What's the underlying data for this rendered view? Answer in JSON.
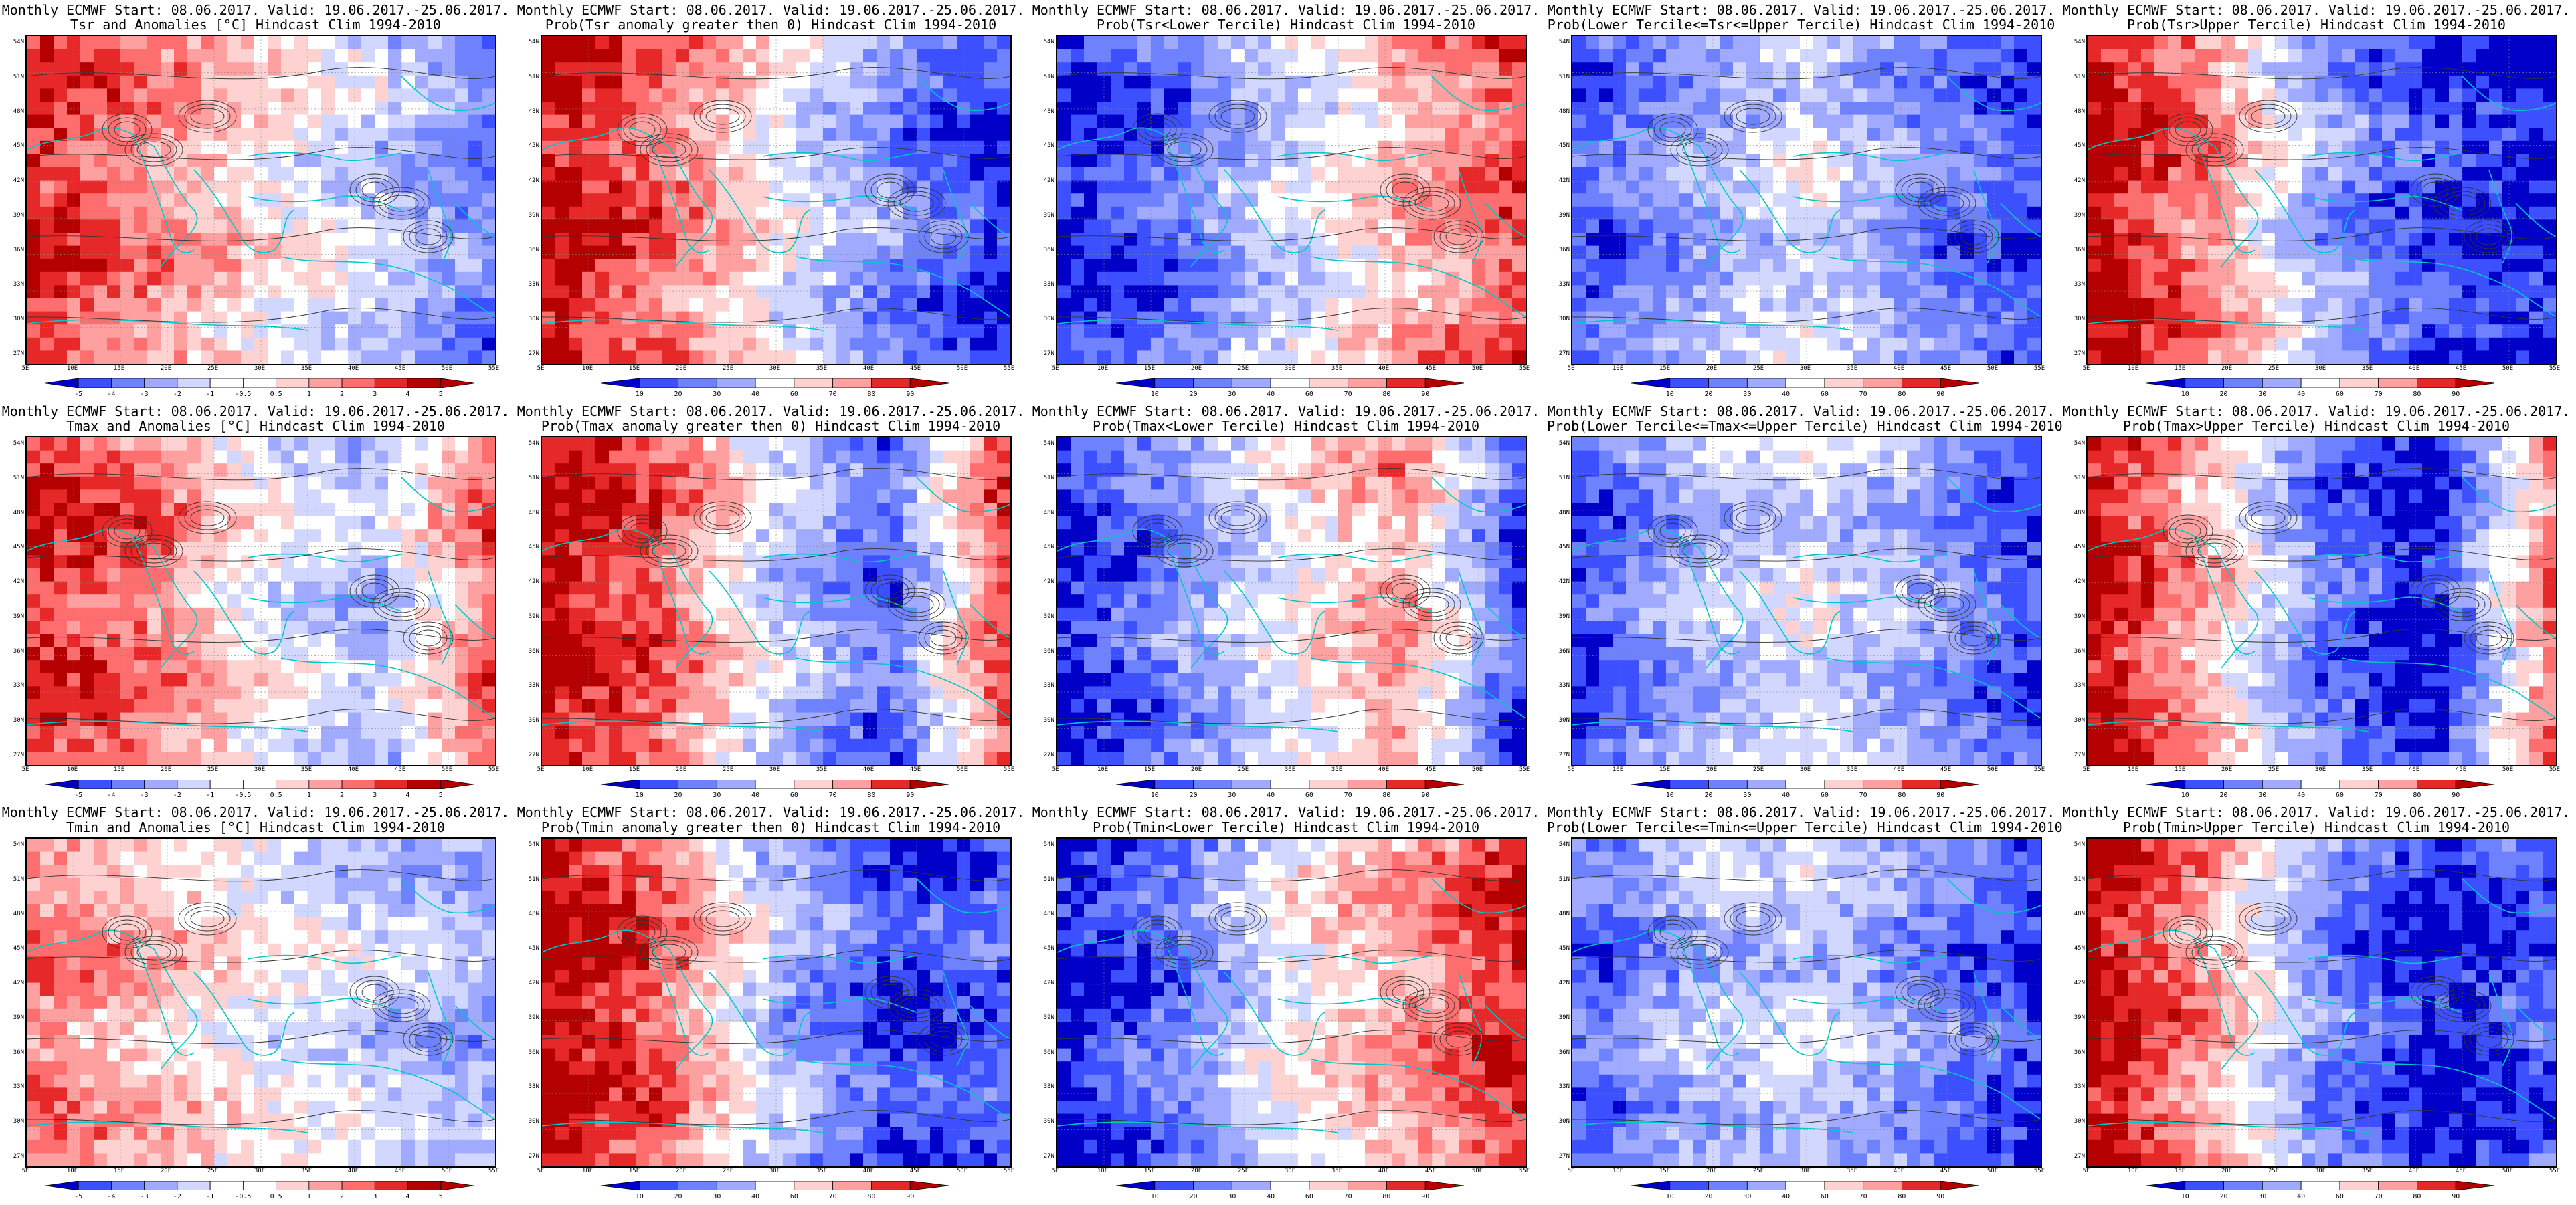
{
  "figure": {
    "colors": {
      "dark_blue": "#0000c8",
      "blue": "#3c50ff",
      "mid_blue": "#6e82ff",
      "light_blue": "#a0aaff",
      "pale_blue": "#d2d7ff",
      "white": "#ffffff",
      "pale_red": "#ffd2d2",
      "light_red": "#ffa0a0",
      "mid_red": "#ff6e6e",
      "red": "#e62828",
      "dark_red": "#b40000",
      "coast": "#00c8c8",
      "contour": "#333333"
    },
    "lat_labels": [
      "54N",
      "51N",
      "48N",
      "45N",
      "42N",
      "39N",
      "36N",
      "33N",
      "30N",
      "27N"
    ],
    "lon_labels": [
      "5E",
      "10E",
      "15E",
      "20E",
      "25E",
      "30E",
      "35E",
      "40E",
      "45E",
      "50E",
      "55E"
    ],
    "anomaly_colorbar_labels": [
      "-5",
      "-4",
      "-3",
      "-2",
      "-1",
      "-0.5",
      "0.5",
      "1",
      "2",
      "3",
      "4",
      "5"
    ],
    "prob_colorbar_labels": [
      "10",
      "20",
      "30",
      "40",
      "60",
      "70",
      "80",
      "90"
    ],
    "panels": [
      {
        "line1": "Monthly ECMWF Start: 08.06.2017. Valid: 19.06.2017.-25.06.2017.",
        "line2": "Tsr and Anomalies [°C] Hindcast Clim 1994-2010",
        "kind": "anom",
        "pattern": [
          1.6,
          1.0,
          0.2,
          -0.4,
          -1.2
        ]
      },
      {
        "line1": "Monthly ECMWF Start: 08.06.2017. Valid: 19.06.2017.-25.06.2017.",
        "line2": "Prob(Tsr anomaly greater then 0) Hindcast Clim 1994-2010",
        "kind": "prob",
        "pattern": [
          1.8,
          1.2,
          0.0,
          -1.0,
          -1.8
        ]
      },
      {
        "line1": "Monthly ECMWF Start: 08.06.2017. Valid: 19.06.2017.-25.06.2017.",
        "line2": "Prob(Tsr<Lower Tercile) Hindcast Clim 1994-2010",
        "kind": "prob",
        "pattern": [
          -1.8,
          -1.2,
          -0.3,
          0.6,
          1.4
        ]
      },
      {
        "line1": "Monthly ECMWF Start: 08.06.2017. Valid: 19.06.2017.-25.06.2017.",
        "line2": "Prob(Lower Tercile<=Tsr<=Upper Tercile) Hindcast Clim 1994-2010",
        "kind": "prob",
        "pattern": [
          -1.4,
          -0.8,
          -0.2,
          -1.0,
          -1.6
        ]
      },
      {
        "line1": "Monthly ECMWF Start: 08.06.2017. Valid: 19.06.2017.-25.06.2017.",
        "line2": "Prob(Tsr>Upper Tercile) Hindcast Clim 1994-2010",
        "kind": "prob",
        "pattern": [
          1.9,
          1.0,
          -0.8,
          -1.6,
          -1.9
        ]
      },
      {
        "line1": "Monthly ECMWF Start: 08.06.2017. Valid: 19.06.2017.-25.06.2017.",
        "line2": "Tmax and Anomalies [°C] Hindcast Clim 1994-2010",
        "kind": "anom",
        "pattern": [
          1.6,
          1.1,
          0.0,
          -0.6,
          1.2
        ]
      },
      {
        "line1": "Monthly ECMWF Start: 08.06.2017. Valid: 19.06.2017.-25.06.2017.",
        "line2": "Prob(Tmax anomaly greater then 0) Hindcast Clim 1994-2010",
        "kind": "prob",
        "pattern": [
          1.9,
          1.2,
          -0.4,
          -1.4,
          1.4
        ]
      },
      {
        "line1": "Monthly ECMWF Start: 08.06.2017. Valid: 19.06.2017.-25.06.2017.",
        "line2": "Prob(Tmax<Lower Tercile) Hindcast Clim 1994-2010",
        "kind": "prob",
        "pattern": [
          -1.8,
          -1.0,
          0.0,
          0.8,
          -1.6
        ]
      },
      {
        "line1": "Monthly ECMWF Start: 08.06.2017. Valid: 19.06.2017.-25.06.2017.",
        "line2": "Prob(Lower Tercile<=Tmax<=Upper Tercile) Hindcast Clim 1994-2010",
        "kind": "prob",
        "pattern": [
          -1.6,
          -0.6,
          -0.2,
          -0.8,
          -1.6
        ]
      },
      {
        "line1": "Monthly ECMWF Start: 08.06.2017. Valid: 19.06.2017.-25.06.2017.",
        "line2": "Prob(Tmax>Upper Tercile) Hindcast Clim 1994-2010",
        "kind": "prob",
        "pattern": [
          1.9,
          0.6,
          -1.2,
          -1.9,
          1.0
        ]
      },
      {
        "line1": "Monthly ECMWF Start: 08.06.2017. Valid: 19.06.2017.-25.06.2017.",
        "line2": "Tmin and Anomalies [°C] Hindcast Clim 1994-2010",
        "kind": "anom",
        "pattern": [
          1.0,
          0.6,
          0.0,
          -0.4,
          -0.8
        ]
      },
      {
        "line1": "Monthly ECMWF Start: 08.06.2017. Valid: 19.06.2017.-25.06.2017.",
        "line2": "Prob(Tmin anomaly greater then 0) Hindcast Clim 1994-2010",
        "kind": "prob",
        "pattern": [
          1.9,
          1.2,
          -0.6,
          -1.6,
          -1.4
        ]
      },
      {
        "line1": "Monthly ECMWF Start: 08.06.2017. Valid: 19.06.2017.-25.06.2017.",
        "line2": "Prob(Tmin<Lower Tercile) Hindcast Clim 1994-2010",
        "kind": "prob",
        "pattern": [
          -1.9,
          -1.2,
          0.0,
          0.8,
          1.6
        ]
      },
      {
        "line1": "Monthly ECMWF Start: 08.06.2017. Valid: 19.06.2017.-25.06.2017.",
        "line2": "Prob(Lower Tercile<=Tmin<=Upper Tercile) Hindcast Clim 1994-2010",
        "kind": "prob",
        "pattern": [
          -1.4,
          -0.6,
          -0.4,
          -1.0,
          -1.6
        ]
      },
      {
        "line1": "Monthly ECMWF Start: 08.06.2017. Valid: 19.06.2017.-25.06.2017.",
        "line2": "Prob(Tmin>Upper Tercile) Hindcast Clim 1994-2010",
        "kind": "prob",
        "pattern": [
          1.9,
          0.8,
          -1.0,
          -1.9,
          -1.4
        ]
      }
    ]
  }
}
